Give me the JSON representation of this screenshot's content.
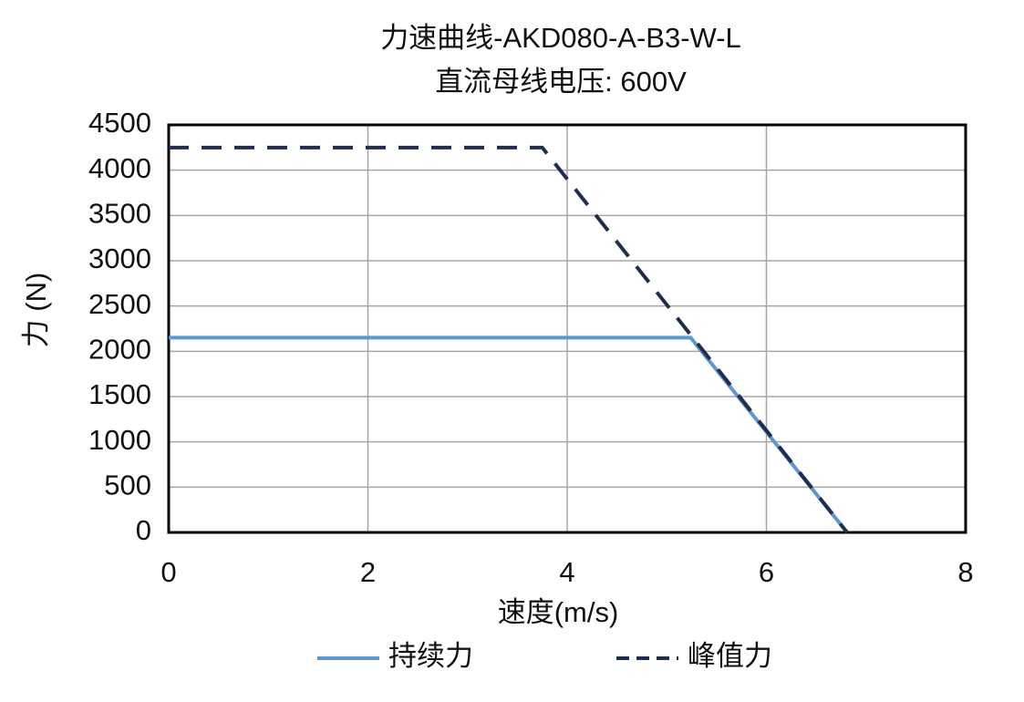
{
  "chart_data": {
    "type": "line",
    "title": "力速曲线-AKD080-A-B3-W-L",
    "subtitle": "直流母线电压: 600V",
    "x_label": "速度(m/s)",
    "y_label": "力 (N)",
    "xlim": [
      0,
      8
    ],
    "xticks": [
      0,
      2,
      4,
      6,
      8
    ],
    "ylim": [
      0,
      4500
    ],
    "yticks": [
      0,
      500,
      1000,
      1500,
      2000,
      2500,
      3000,
      3500,
      4000,
      4500
    ],
    "grid": true,
    "legend": "bottom",
    "series": [
      {
        "name": "持续力",
        "color": "#5e97d0",
        "linestyle": "solid",
        "x": [
          0,
          5.24,
          6.81
        ],
        "values": [
          2150,
          2150,
          0
        ]
      },
      {
        "name": "峰值力",
        "color": "#1f2d4f",
        "linestyle": "dashed",
        "x": [
          0,
          3.75,
          6.81
        ],
        "values": [
          4250,
          4250,
          0
        ]
      }
    ]
  }
}
